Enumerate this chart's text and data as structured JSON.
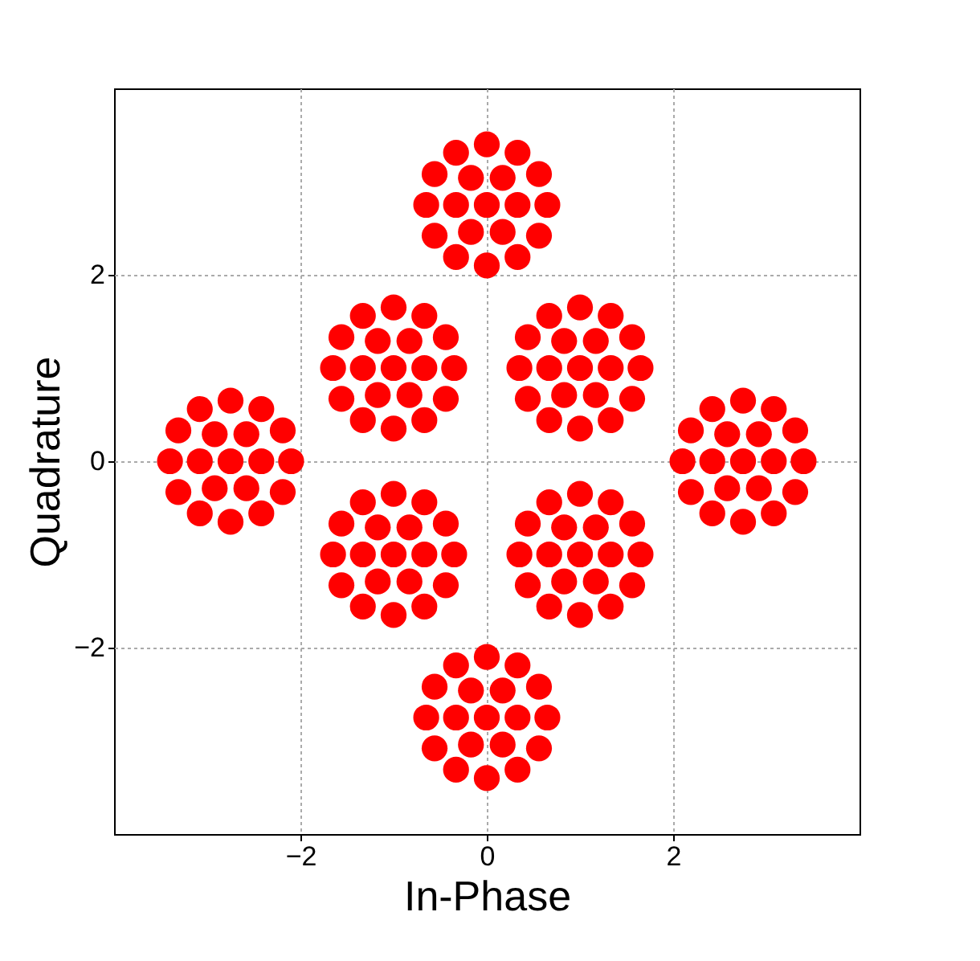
{
  "chart_data": {
    "type": "scatter",
    "xlabel": "In-Phase",
    "ylabel": "Quadrature",
    "xlim": [
      -4,
      4
    ],
    "ylim": [
      -4,
      4
    ],
    "xticks": [
      -2,
      0,
      2
    ],
    "yticks": [
      -2,
      0,
      2
    ],
    "grid": true,
    "marker": "circle",
    "series": [
      {
        "color": "#ff0000",
        "x": [
          0,
          0.33,
          0.17,
          -0.17,
          -0.33,
          -0.17,
          0.17,
          0.65,
          0.56,
          0.33,
          0,
          -0.33,
          -0.56,
          -0.65,
          -0.56,
          -0.33,
          0,
          0.33,
          0.56,
          -1,
          -0.67,
          -0.83,
          -1.17,
          -1.33,
          -1.17,
          -0.83,
          -0.35,
          -0.44,
          -0.67,
          -1,
          -1.33,
          -1.56,
          -1.65,
          -1.56,
          -1.33,
          -1,
          -0.67,
          -0.44,
          1,
          1.33,
          1.17,
          0.83,
          0.67,
          0.83,
          1.17,
          1.65,
          1.56,
          1.33,
          1,
          0.67,
          0.44,
          0.35,
          0.44,
          0.67,
          1,
          1.33,
          1.56,
          -2.75,
          -2.42,
          -2.58,
          -2.92,
          -3.08,
          -2.92,
          -2.58,
          -2.1,
          -2.19,
          -2.42,
          -2.75,
          -3.08,
          -3.31,
          -3.4,
          -3.31,
          -3.08,
          -2.75,
          -2.42,
          -2.19,
          2.75,
          3.08,
          2.92,
          2.58,
          2.42,
          2.58,
          2.92,
          3.4,
          3.31,
          3.08,
          2.75,
          2.42,
          2.19,
          2.1,
          2.19,
          2.42,
          2.75,
          3.08,
          3.31,
          -1,
          -0.67,
          -0.83,
          -1.17,
          -1.33,
          -1.17,
          -0.83,
          -0.35,
          -0.44,
          -0.67,
          -1,
          -1.33,
          -1.56,
          -1.65,
          -1.56,
          -1.33,
          -1,
          -0.67,
          -0.44,
          1,
          1.33,
          1.17,
          0.83,
          0.67,
          0.83,
          1.17,
          1.65,
          1.56,
          1.33,
          1,
          0.67,
          0.44,
          0.35,
          0.44,
          0.67,
          1,
          1.33,
          1.56,
          0,
          0.33,
          0.17,
          -0.17,
          -0.33,
          -0.17,
          0.17,
          0.65,
          0.56,
          0.33,
          0,
          -0.33,
          -0.56,
          -0.65,
          -0.56,
          -0.33,
          0,
          0.33,
          0.56
        ],
        "values": [
          2.75,
          2.75,
          3.04,
          3.04,
          2.75,
          2.46,
          2.46,
          2.75,
          3.08,
          3.31,
          3.4,
          3.31,
          3.08,
          2.75,
          2.42,
          2.19,
          2.1,
          2.19,
          2.42,
          1,
          1,
          1.29,
          1.29,
          1,
          0.71,
          0.71,
          1,
          1.33,
          1.56,
          1.65,
          1.56,
          1.33,
          1,
          0.67,
          0.44,
          0.35,
          0.44,
          0.67,
          1,
          1,
          1.29,
          1.29,
          1,
          0.71,
          0.71,
          1,
          1.33,
          1.56,
          1.65,
          1.56,
          1.33,
          1,
          0.67,
          0.44,
          0.35,
          0.44,
          0.67,
          0,
          0,
          0.29,
          0.29,
          0,
          -0.29,
          -0.29,
          0,
          0.33,
          0.56,
          0.65,
          0.56,
          0.33,
          0,
          -0.33,
          -0.56,
          -0.65,
          -0.56,
          -0.33,
          0,
          0,
          0.29,
          0.29,
          0,
          -0.29,
          -0.29,
          0,
          0.33,
          0.56,
          0.65,
          0.56,
          0.33,
          0,
          -0.33,
          -0.56,
          -0.65,
          -0.56,
          -0.33,
          -1,
          -1,
          -0.71,
          -0.71,
          -1,
          -1.29,
          -1.29,
          -1,
          -0.67,
          -0.44,
          -0.35,
          -0.44,
          -0.67,
          -1,
          -1.33,
          -1.56,
          -1.65,
          -1.56,
          -1.33,
          -1,
          -1,
          -0.71,
          -0.71,
          -1,
          -1.29,
          -1.29,
          -1,
          -0.67,
          -0.44,
          -0.35,
          -0.44,
          -0.67,
          -1,
          -1.33,
          -1.56,
          -1.65,
          -1.56,
          -1.33,
          -2.75,
          -2.75,
          -2.46,
          -2.46,
          -2.75,
          -3.04,
          -3.04,
          -2.75,
          -2.42,
          -2.19,
          -2.1,
          -2.19,
          -2.42,
          -2.75,
          -3.08,
          -3.31,
          -3.4,
          -3.31,
          -3.08
        ]
      }
    ]
  }
}
